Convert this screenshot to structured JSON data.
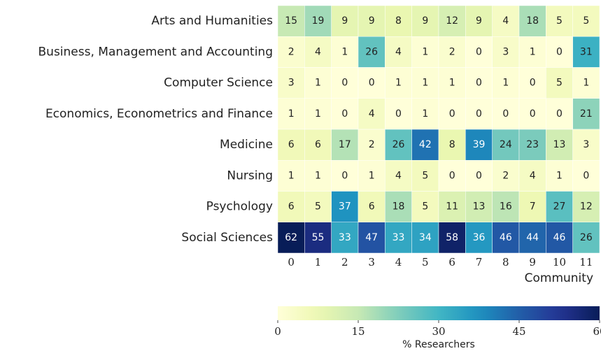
{
  "chart_data": {
    "type": "heatmap",
    "x": [
      0,
      1,
      2,
      3,
      4,
      5,
      6,
      7,
      8,
      9,
      10,
      11
    ],
    "y": [
      "Arts and Humanities",
      "Business, Management and Accounting",
      "Computer Science",
      "Economics, Econometrics and Finance",
      "Medicine",
      "Nursing",
      "Psychology",
      "Social Sciences"
    ],
    "values": [
      [
        15,
        19,
        9,
        9,
        8,
        9,
        12,
        9,
        4,
        18,
        5,
        5
      ],
      [
        2,
        4,
        1,
        26,
        4,
        1,
        2,
        0,
        3,
        1,
        0,
        31
      ],
      [
        3,
        1,
        0,
        0,
        1,
        1,
        1,
        0,
        1,
        0,
        5,
        1
      ],
      [
        1,
        1,
        0,
        4,
        0,
        1,
        0,
        0,
        0,
        0,
        0,
        21
      ],
      [
        6,
        6,
        17,
        2,
        26,
        42,
        8,
        39,
        24,
        23,
        13,
        3
      ],
      [
        1,
        1,
        0,
        1,
        4,
        5,
        0,
        0,
        2,
        4,
        1,
        0
      ],
      [
        6,
        5,
        37,
        6,
        18,
        5,
        11,
        13,
        16,
        7,
        27,
        12
      ],
      [
        62,
        55,
        33,
        47,
        33,
        34,
        58,
        36,
        46,
        44,
        46,
        26
      ]
    ],
    "x_label": "Community",
    "colormap": "YlGnBu",
    "clim": [
      0,
      60
    ],
    "cticks": [
      0,
      15,
      30,
      45,
      60
    ],
    "colorbar_label": "% Researchers"
  }
}
